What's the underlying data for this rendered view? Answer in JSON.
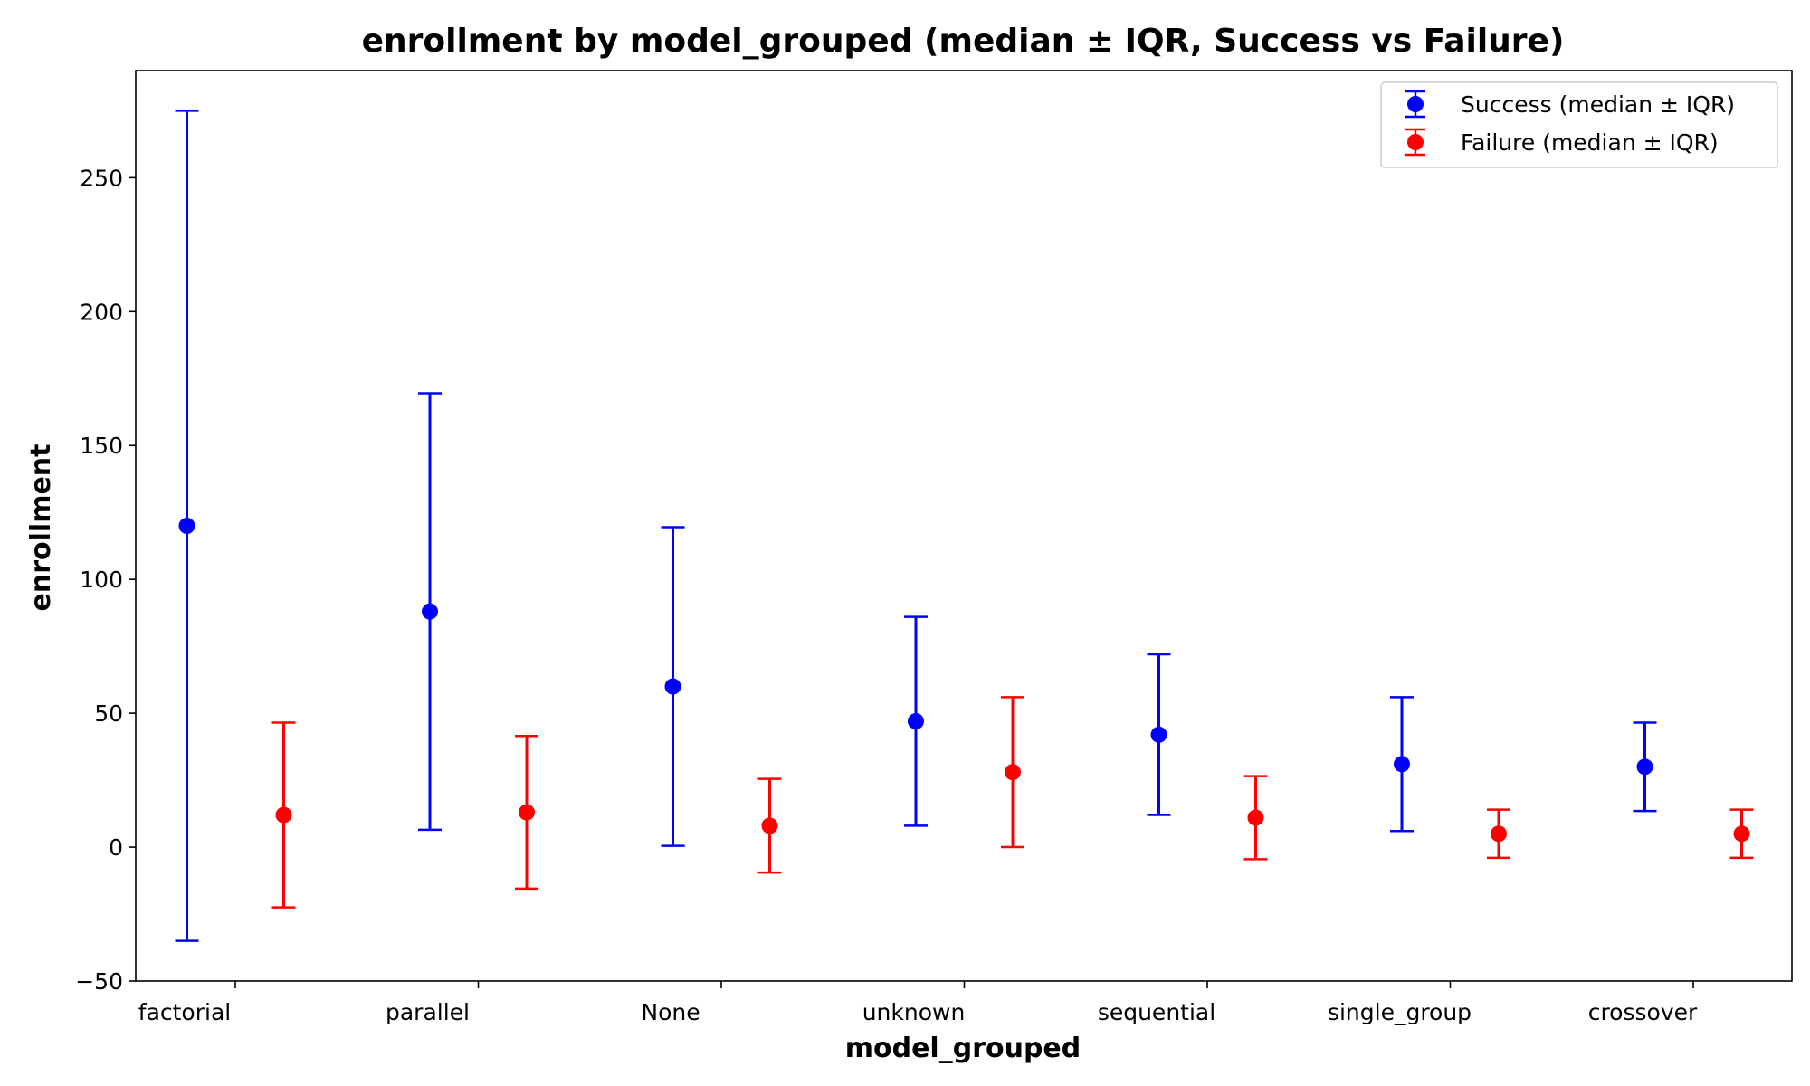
{
  "chart_data": {
    "type": "errorbar",
    "title": "enrollment by model_grouped (median ± IQR, Success vs Failure)",
    "xlabel": "model_grouped",
    "ylabel": "enrollment",
    "categories": [
      "factorial",
      "parallel",
      "None",
      "unknown",
      "sequential",
      "single_group",
      "crossover"
    ],
    "ylim": [
      -50,
      290
    ],
    "yticks": [
      -50,
      0,
      50,
      100,
      150,
      200,
      250
    ],
    "ytick_labels": [
      "−50",
      "0",
      "50",
      "100",
      "150",
      "200",
      "250"
    ],
    "legend_position": "upper right",
    "series": [
      {
        "name": "Success (median ± IQR)",
        "color": "#0000ff",
        "median": [
          120,
          88,
          60,
          47,
          42,
          31,
          30
        ],
        "lower": [
          -35,
          6.5,
          0.5,
          8,
          12,
          6,
          13.5
        ],
        "upper": [
          275,
          169.5,
          119.5,
          86,
          72,
          56,
          46.5
        ]
      },
      {
        "name": "Failure (median ± IQR)",
        "color": "#ff0000",
        "median": [
          12,
          13,
          8,
          28,
          11,
          5,
          5
        ],
        "lower": [
          -22.5,
          -15.5,
          -9.5,
          0,
          -4.5,
          -4,
          -4
        ],
        "upper": [
          46.5,
          41.5,
          25.5,
          56,
          26.5,
          14,
          14
        ]
      }
    ]
  }
}
